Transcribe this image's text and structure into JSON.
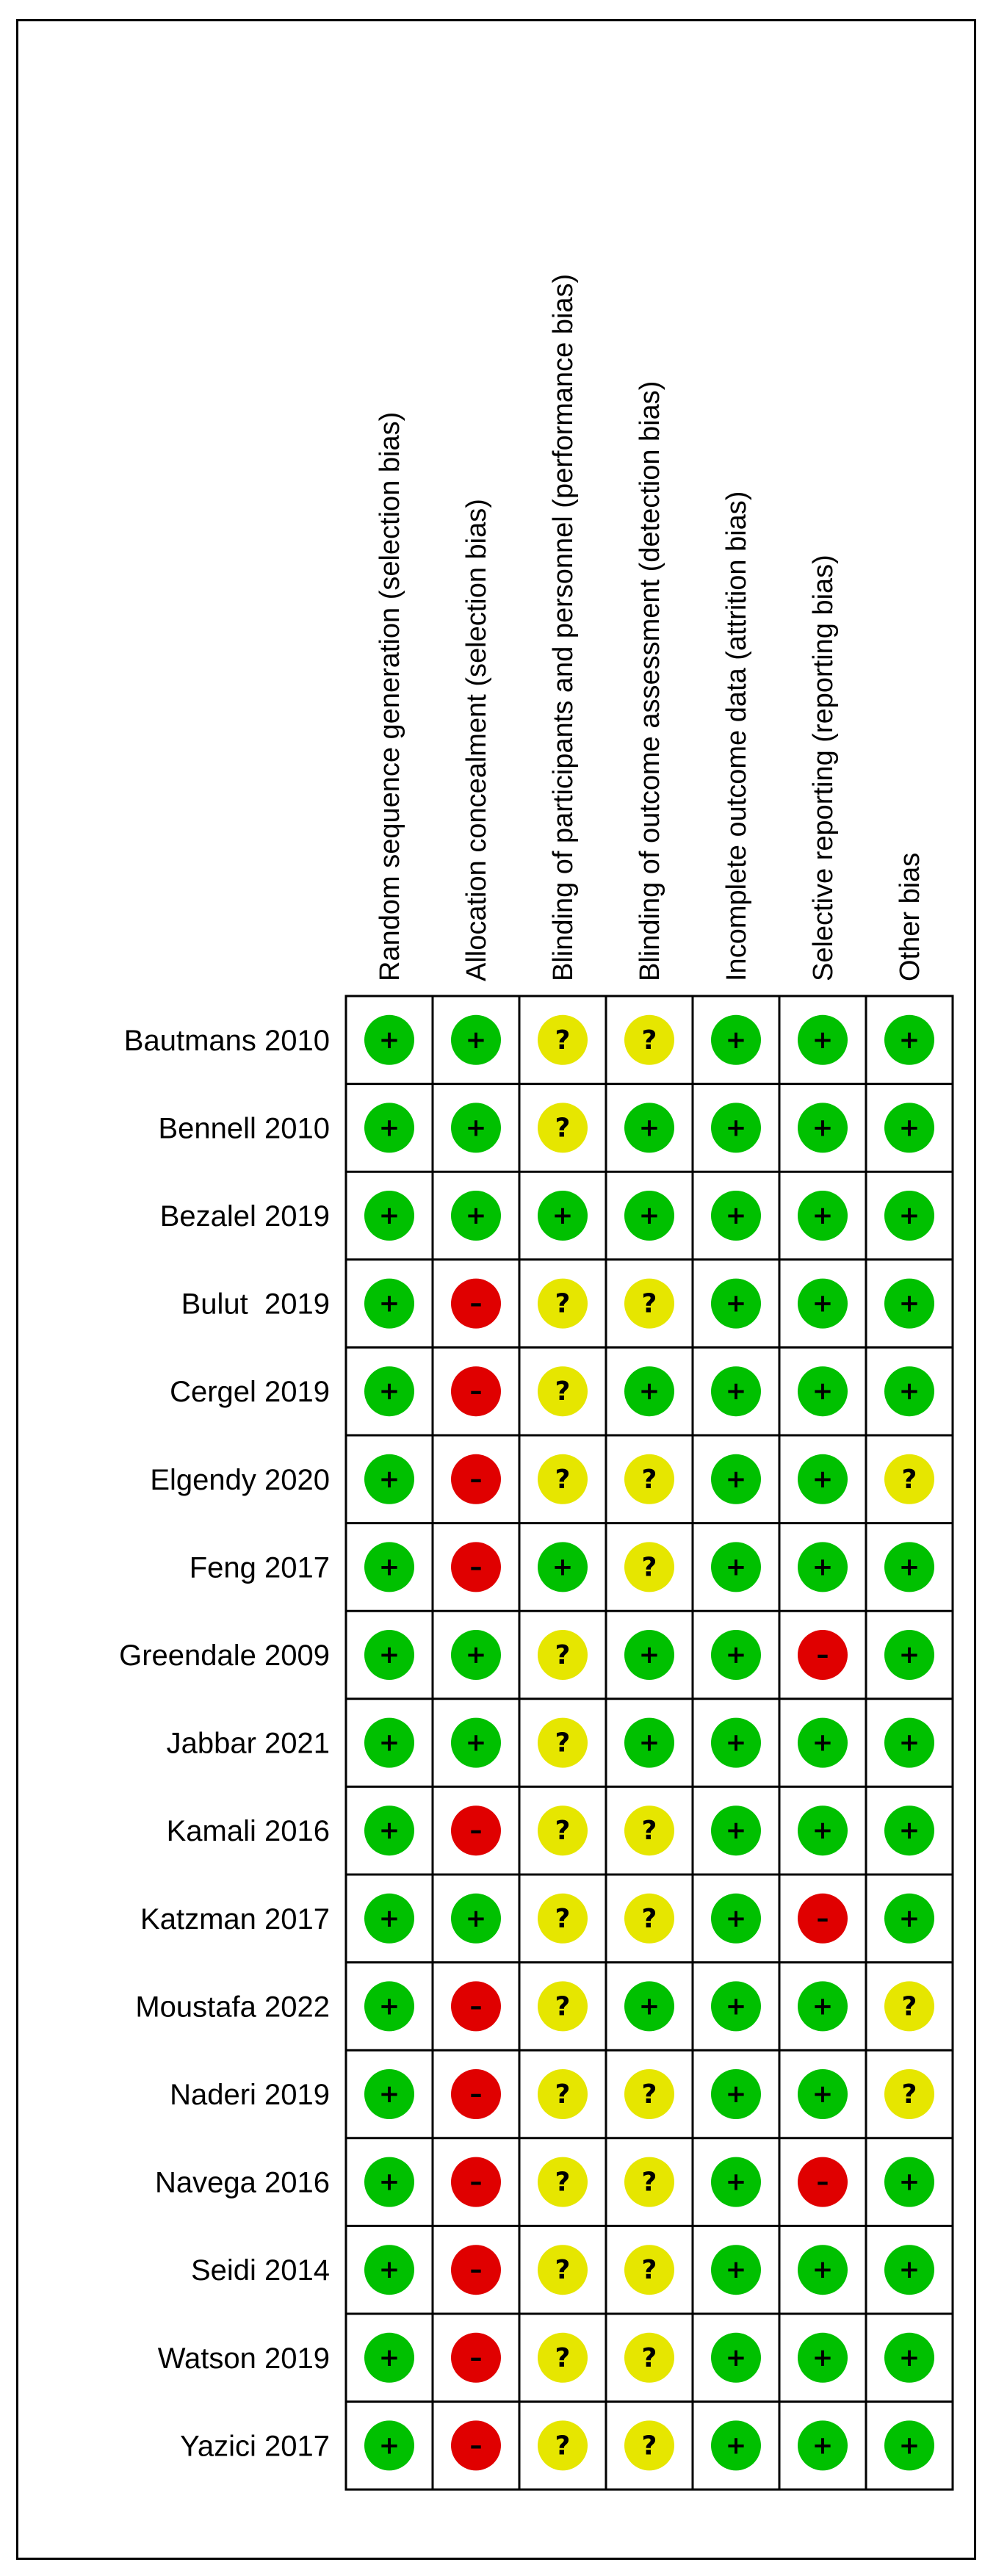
{
  "chart_data": {
    "type": "table",
    "title": "",
    "columns": [
      "Random sequence generation (selection bias)",
      "Allocation concealment (selection bias)",
      "Blinding of participants and personnel (performance bias)",
      "Blinding of outcome assessment (detection bias)",
      "Incomplete outcome data (attrition bias)",
      "Selective reporting (reporting bias)",
      "Other bias"
    ],
    "rows": [
      {
        "study": "Bautmans 2010",
        "judgements": [
          "+",
          "+",
          "?",
          "?",
          "+",
          "+",
          "+"
        ]
      },
      {
        "study": "Bennell 2010",
        "judgements": [
          "+",
          "+",
          "?",
          "+",
          "+",
          "+",
          "+"
        ]
      },
      {
        "study": "Bezalel 2019",
        "judgements": [
          "+",
          "+",
          "+",
          "+",
          "+",
          "+",
          "+"
        ]
      },
      {
        "study": "Bulut  2019",
        "judgements": [
          "+",
          "-",
          "?",
          "?",
          "+",
          "+",
          "+"
        ]
      },
      {
        "study": "Cergel 2019",
        "judgements": [
          "+",
          "-",
          "?",
          "+",
          "+",
          "+",
          "+"
        ]
      },
      {
        "study": "Elgendy 2020",
        "judgements": [
          "+",
          "-",
          "?",
          "?",
          "+",
          "+",
          "?"
        ]
      },
      {
        "study": "Feng 2017",
        "judgements": [
          "+",
          "-",
          "+",
          "?",
          "+",
          "+",
          "+"
        ]
      },
      {
        "study": "Greendale 2009",
        "judgements": [
          "+",
          "+",
          "?",
          "+",
          "+",
          "-",
          "+"
        ]
      },
      {
        "study": "Jabbar 2021",
        "judgements": [
          "+",
          "+",
          "?",
          "+",
          "+",
          "+",
          "+"
        ]
      },
      {
        "study": "Kamali 2016",
        "judgements": [
          "+",
          "-",
          "?",
          "?",
          "+",
          "+",
          "+"
        ]
      },
      {
        "study": "Katzman 2017",
        "judgements": [
          "+",
          "+",
          "?",
          "?",
          "+",
          "-",
          "+"
        ]
      },
      {
        "study": "Moustafa 2022",
        "judgements": [
          "+",
          "-",
          "?",
          "+",
          "+",
          "+",
          "?"
        ]
      },
      {
        "study": "Naderi 2019",
        "judgements": [
          "+",
          "-",
          "?",
          "?",
          "+",
          "+",
          "?"
        ]
      },
      {
        "study": "Navega 2016",
        "judgements": [
          "+",
          "-",
          "?",
          "?",
          "+",
          "-",
          "+"
        ]
      },
      {
        "study": "Seidi 2014",
        "judgements": [
          "+",
          "-",
          "?",
          "?",
          "+",
          "+",
          "+"
        ]
      },
      {
        "study": "Watson 2019",
        "judgements": [
          "+",
          "-",
          "?",
          "?",
          "+",
          "+",
          "+"
        ]
      },
      {
        "study": "Yazici 2017",
        "judgements": [
          "+",
          "-",
          "?",
          "?",
          "+",
          "+",
          "+"
        ]
      }
    ],
    "colors": {
      "low_risk": "#00c000",
      "high_risk": "#e00000",
      "unclear_risk": "#e6e600"
    }
  }
}
